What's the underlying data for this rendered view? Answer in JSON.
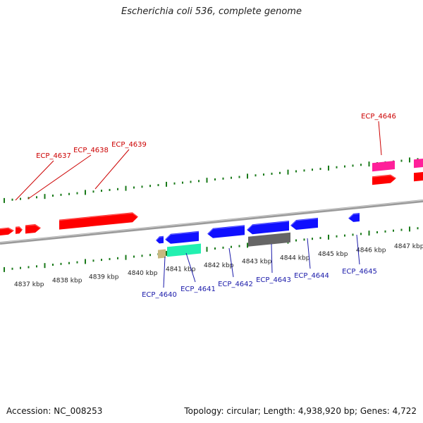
{
  "title": "Escherichia coli 536, complete genome",
  "accession": "Accession: NC_008253",
  "topology_info": "Topology: circular; Length: 4,938,920 bp; Genes: 4,722",
  "colors": {
    "forward_gene": "#ff0000",
    "forward_alt_gene": "#ff1f9a",
    "reverse_gene": "#1010ff",
    "reverse_grey_gene": "#666666",
    "reverse_teal_gene": "#22f0b0",
    "reverse_tan_gene": "#c8b880",
    "top_label": "#cc0000",
    "bottom_label": "#1a1aaa",
    "tick": "#1a7a1a",
    "backbone": "#888888"
  },
  "kbp_labels": [
    "4837 kbp",
    "4838 kbp",
    "4839 kbp",
    "4840 kbp",
    "4841 kbp",
    "4842 kbp",
    "4843 kbp",
    "4844 kbp",
    "4845 kbp",
    "4846 kbp",
    "4847 kbp"
  ],
  "top_gene_labels": [
    "ECP_4637",
    "ECP_4638",
    "ECP_4639",
    "ECP_4646"
  ],
  "bottom_gene_labels": [
    "ECP_4640",
    "ECP_4641",
    "ECP_4642",
    "ECP_4643",
    "ECP_4644",
    "ECP_4645"
  ]
}
